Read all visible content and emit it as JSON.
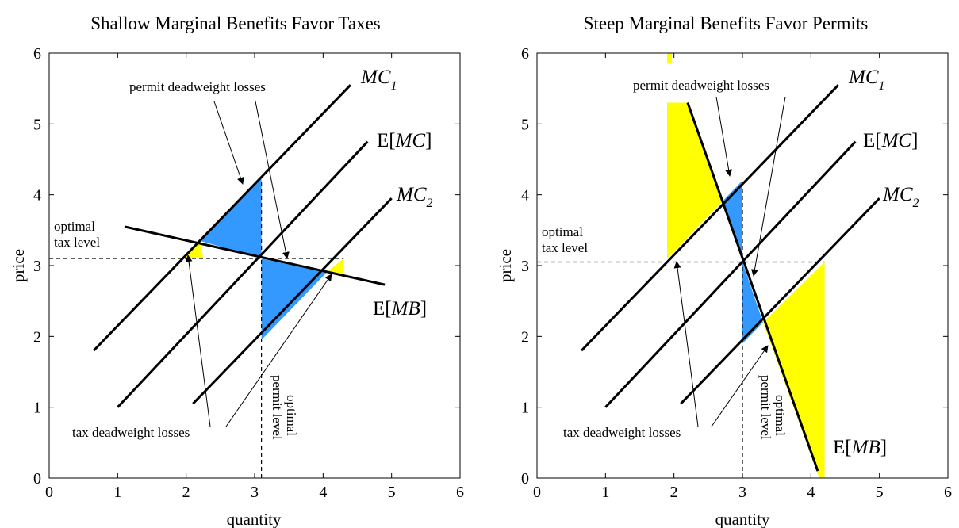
{
  "chart_data": [
    {
      "type": "line",
      "title": "Shallow Marginal Benefits Favor Taxes",
      "xlabel": "quantity",
      "ylabel": "price",
      "xlim": [
        0,
        6
      ],
      "ylim": [
        0,
        6
      ],
      "xticks": [
        0,
        1,
        2,
        3,
        4,
        5,
        6
      ],
      "yticks": [
        0,
        1,
        2,
        3,
        4,
        5,
        6
      ],
      "grid": false,
      "colors": {
        "tax_loss": "#ffff00",
        "permit_loss": "#3399ff"
      },
      "series": [
        {
          "name": "MC",
          "subscript": "1",
          "prefix": "",
          "suffix": "",
          "x": [
            0.65,
            4.4
          ],
          "y": [
            1.8,
            5.55
          ]
        },
        {
          "name": "MC",
          "prefix": "E[",
          "suffix": "]",
          "x": [
            1.0,
            4.65
          ],
          "y": [
            1.0,
            4.75
          ]
        },
        {
          "name": "MC",
          "subscript": "2",
          "prefix": "",
          "suffix": "",
          "x": [
            2.1,
            5.0
          ],
          "y": [
            1.05,
            3.95
          ]
        },
        {
          "name": "MB",
          "prefix": "E[",
          "suffix": "]",
          "x": [
            1.1,
            4.9
          ],
          "y": [
            3.55,
            2.73
          ]
        }
      ],
      "reference": {
        "tax_price": 3.1,
        "permit_quantity": 3.1
      },
      "regions": [
        {
          "kind": "permit_loss",
          "x": [
            3.1,
            3.1,
            2.2
          ],
          "y": [
            3.1,
            4.25,
            3.35
          ]
        },
        {
          "kind": "permit_loss",
          "x": [
            3.1,
            3.1,
            4.05
          ],
          "y": [
            3.1,
            1.95,
            2.9
          ]
        },
        {
          "kind": "tax_loss",
          "x": [
            1.95,
            2.25,
            2.2
          ],
          "y": [
            3.1,
            3.1,
            3.35
          ]
        },
        {
          "kind": "tax_loss",
          "x": [
            4.05,
            4.3,
            4.3
          ],
          "y": [
            2.9,
            3.1,
            2.87
          ]
        }
      ],
      "annotations": {
        "permit_losses": "permit deadweight losses",
        "tax_losses": "tax deadweight losses",
        "tax_level": [
          "optimal",
          "tax level"
        ],
        "permit_level": [
          "optimal",
          "permit level"
        ]
      }
    },
    {
      "type": "line",
      "title": "Steep Marginal Benefits Favor Permits",
      "xlabel": "quantity",
      "ylabel": "price",
      "xlim": [
        0,
        6
      ],
      "ylim": [
        0,
        6
      ],
      "xticks": [
        0,
        1,
        2,
        3,
        4,
        5,
        6
      ],
      "yticks": [
        0,
        1,
        2,
        3,
        4,
        5,
        6
      ],
      "grid": false,
      "colors": {
        "tax_loss": "#ffff00",
        "permit_loss": "#3399ff"
      },
      "series": [
        {
          "name": "MC",
          "subscript": "1",
          "prefix": "",
          "suffix": "",
          "x": [
            0.65,
            4.4
          ],
          "y": [
            1.8,
            5.55
          ]
        },
        {
          "name": "MC",
          "prefix": "E[",
          "suffix": "]",
          "x": [
            1.0,
            4.65
          ],
          "y": [
            1.0,
            4.75
          ]
        },
        {
          "name": "MC",
          "subscript": "2",
          "prefix": "",
          "suffix": "",
          "x": [
            2.1,
            5.0
          ],
          "y": [
            1.05,
            3.95
          ]
        },
        {
          "name": "MB",
          "prefix": "E[",
          "suffix": "]",
          "x": [
            2.2,
            4.1
          ],
          "y": [
            5.3,
            0.1
          ]
        }
      ],
      "reference": {
        "tax_price": 3.05,
        "permit_quantity": 3.0
      },
      "regions": [
        {
          "kind": "tax_loss",
          "x": [
            1.9,
            2.2,
            2.7,
            1.9
          ],
          "y": [
            5.3,
            5.3,
            3.9,
            3.1
          ]
        },
        {
          "kind": "tax_loss",
          "x": [
            3.3,
            4.2,
            4.2,
            4.12
          ],
          "y": [
            2.2,
            3.05,
            0.0,
            0.0
          ]
        },
        {
          "kind": "tax_loss",
          "x": [
            1.9,
            1.97,
            1.97,
            1.9
          ],
          "y": [
            6.0,
            6.0,
            5.85,
            5.85
          ]
        },
        {
          "kind": "permit_loss",
          "x": [
            2.7,
            3.0,
            3.0
          ],
          "y": [
            3.9,
            3.05,
            4.2
          ]
        },
        {
          "kind": "permit_loss",
          "x": [
            3.0,
            3.3,
            3.0
          ],
          "y": [
            3.05,
            2.2,
            1.9
          ]
        }
      ],
      "annotations": {
        "permit_losses": "permit deadweight losses",
        "tax_losses": "tax deadweight losses",
        "tax_level": [
          "optimal",
          "tax level"
        ],
        "permit_level": [
          "optimal",
          "permit level"
        ]
      }
    }
  ]
}
